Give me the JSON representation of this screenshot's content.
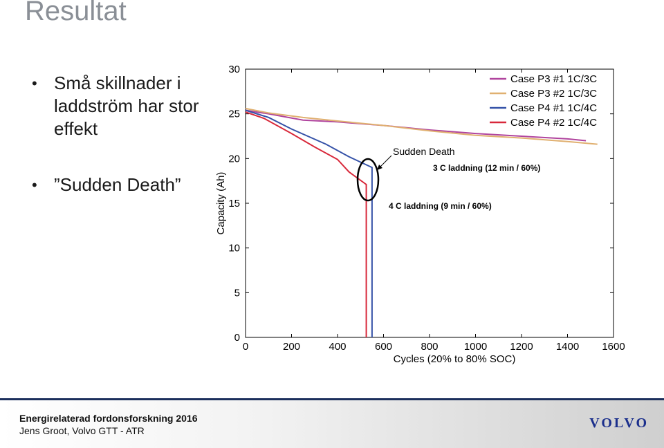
{
  "slide": {
    "title": "Resultat",
    "bullets": [
      {
        "text": "Små skillnader i laddström har stor effekt"
      },
      {
        "text": "”Sudden Death”"
      }
    ]
  },
  "footer": {
    "title": "Energirelaterad fordonsforskning 2016",
    "subtitle": "Jens Groot, Volvo GTT - ATR",
    "logo_text": "VOLVO"
  },
  "chart_data": {
    "type": "line",
    "xlabel": "Cycles (20% to 80% SOC)",
    "ylabel": "Capacity (Ah)",
    "xlim": [
      0,
      1600
    ],
    "ylim": [
      0,
      30
    ],
    "xticks": [
      0,
      200,
      400,
      600,
      800,
      1000,
      1200,
      1400,
      1600
    ],
    "yticks": [
      0,
      5,
      10,
      15,
      20,
      25,
      30
    ],
    "grid": false,
    "legend_position": "top-right",
    "series": [
      {
        "name": "Case P3 #1 1C/3C",
        "color": "#b0449e",
        "x": [
          0,
          100,
          250,
          400,
          600,
          800,
          1000,
          1200,
          1400,
          1480
        ],
        "y": [
          25.4,
          25.0,
          24.3,
          24.1,
          23.7,
          23.2,
          22.8,
          22.5,
          22.2,
          22.0
        ]
      },
      {
        "name": "Case P3 #2 1C/3C",
        "color": "#e0b070",
        "x": [
          0,
          100,
          250,
          400,
          600,
          800,
          1000,
          1200,
          1400,
          1530
        ],
        "y": [
          25.6,
          25.1,
          24.6,
          24.2,
          23.7,
          23.1,
          22.6,
          22.3,
          21.9,
          21.6
        ]
      },
      {
        "name": "Case P4 #1 1C/4C",
        "color": "#3552a8",
        "x": [
          0,
          100,
          200,
          350,
          450,
          550,
          550
        ],
        "y": [
          25.4,
          24.6,
          23.3,
          21.6,
          20.2,
          19.0,
          0
        ]
      },
      {
        "name": "Case P4 #2 1C/4C",
        "color": "#d8283a",
        "x": [
          0,
          80,
          200,
          300,
          400,
          450,
          525,
          525
        ],
        "y": [
          25.2,
          24.5,
          22.8,
          21.3,
          19.9,
          18.5,
          17.1,
          0
        ]
      }
    ],
    "annotations": [
      {
        "text": "Sudden Death"
      },
      {
        "text": "3 C laddning (12 min / 60%)"
      },
      {
        "text": "4 C laddning (9 min / 60%)"
      }
    ]
  }
}
